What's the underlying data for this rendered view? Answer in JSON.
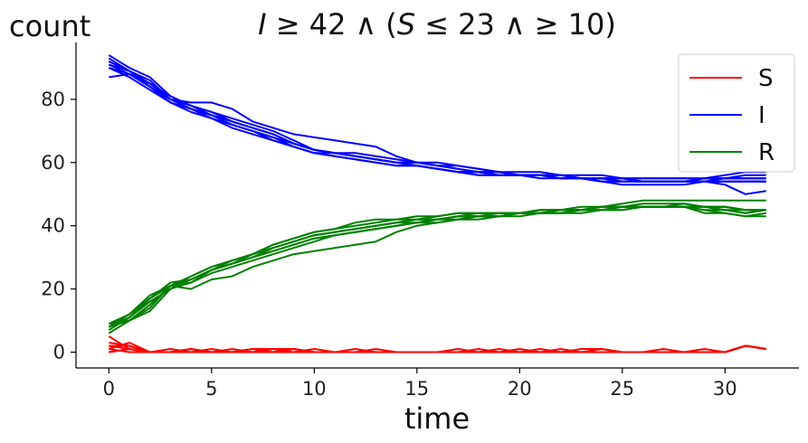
{
  "chart_data": {
    "type": "line",
    "title": "I ≥ 42 ∧ (S ≤ 23 ∧ ≥ 10)",
    "title_parts": {
      "lhs_var": "I",
      "op1": " ≥ 42 ∧ (",
      "mid_var": "S",
      "op2": " ≤ 23 ∧ ≥ 10)"
    },
    "xlabel": "time",
    "ylabel": "count",
    "xlim": [
      -1.6,
      33.6
    ],
    "ylim": [
      -5,
      98
    ],
    "xticks": [
      0,
      5,
      10,
      15,
      20,
      25,
      30
    ],
    "yticks": [
      0,
      20,
      40,
      60,
      80
    ],
    "grid": false,
    "legend_position": "top-right",
    "legend": [
      {
        "label": "S",
        "color": "#ff0000"
      },
      {
        "label": "I",
        "color": "#0000ff"
      },
      {
        "label": "R",
        "color": "#008000"
      }
    ],
    "x": [
      0,
      1,
      2,
      3,
      4,
      5,
      6,
      7,
      8,
      9,
      10,
      11,
      12,
      13,
      14,
      15,
      16,
      17,
      18,
      19,
      20,
      21,
      22,
      23,
      24,
      25,
      26,
      27,
      28,
      29,
      30,
      31,
      32
    ],
    "series": [
      {
        "group": "S",
        "color": "#ff0000",
        "values": [
          5,
          1,
          0,
          0,
          1,
          0,
          0,
          1,
          1,
          1,
          0,
          0,
          0,
          0,
          0,
          0,
          0,
          0,
          0,
          0,
          0,
          0,
          0,
          0,
          0,
          0,
          0,
          0,
          0,
          0,
          0,
          2,
          1
        ]
      },
      {
        "group": "S",
        "color": "#ff0000",
        "values": [
          3,
          2,
          0,
          0,
          0,
          0,
          0,
          0,
          1,
          1,
          0,
          0,
          0,
          0,
          0,
          0,
          0,
          0,
          0,
          0,
          1,
          0,
          0,
          0,
          0,
          0,
          0,
          0,
          0,
          0,
          0,
          2,
          1
        ]
      },
      {
        "group": "S",
        "color": "#ff0000",
        "values": [
          2,
          2,
          0,
          0,
          1,
          0,
          0,
          0,
          0,
          1,
          0,
          0,
          0,
          0,
          0,
          0,
          0,
          0,
          0,
          1,
          0,
          0,
          0,
          0,
          0,
          0,
          0,
          0,
          0,
          0,
          0,
          2,
          1
        ]
      },
      {
        "group": "S",
        "color": "#ff0000",
        "values": [
          1,
          3,
          0,
          0,
          0,
          0,
          0,
          0,
          0,
          0,
          0,
          0,
          0,
          0,
          0,
          0,
          0,
          0,
          0,
          0,
          0,
          0,
          0,
          1,
          1,
          0,
          0,
          0,
          0,
          0,
          0,
          2,
          1
        ]
      },
      {
        "group": "S",
        "color": "#ff0000",
        "values": [
          0,
          1,
          0,
          1,
          0,
          0,
          1,
          0,
          0,
          1,
          0,
          0,
          1,
          0,
          0,
          0,
          0,
          0,
          0,
          0,
          0,
          0,
          0,
          0,
          0,
          0,
          0,
          0,
          0,
          0,
          0,
          2,
          1
        ]
      },
      {
        "group": "S",
        "color": "#ff0000",
        "values": [
          1,
          0,
          0,
          0,
          1,
          0,
          0,
          1,
          0,
          0,
          1,
          0,
          0,
          0,
          0,
          0,
          0,
          1,
          0,
          0,
          0,
          1,
          0,
          0,
          0,
          0,
          0,
          1,
          0,
          0,
          0,
          2,
          1
        ]
      },
      {
        "group": "S",
        "color": "#ff0000",
        "values": [
          0,
          1,
          0,
          0,
          0,
          1,
          0,
          0,
          1,
          0,
          0,
          0,
          0,
          0,
          0,
          0,
          0,
          0,
          1,
          0,
          0,
          0,
          0,
          0,
          1,
          0,
          0,
          0,
          0,
          1,
          0,
          2,
          1
        ]
      },
      {
        "group": "S",
        "color": "#ff0000",
        "values": [
          2,
          1,
          0,
          0,
          0,
          0,
          0,
          0,
          0,
          1,
          0,
          0,
          0,
          1,
          0,
          0,
          0,
          0,
          0,
          0,
          0,
          0,
          1,
          0,
          0,
          0,
          0,
          0,
          0,
          0,
          0,
          2,
          1
        ]
      },
      {
        "group": "I",
        "color": "#0000ff",
        "values": [
          91,
          88,
          85,
          80,
          78,
          76,
          74,
          72,
          70,
          67,
          64,
          63,
          62,
          61,
          60,
          59,
          58,
          57,
          56,
          56,
          56,
          56,
          56,
          55,
          55,
          55,
          54,
          54,
          54,
          55,
          55,
          55,
          55
        ]
      },
      {
        "group": "I",
        "color": "#0000ff",
        "values": [
          93,
          89,
          84,
          80,
          77,
          74,
          72,
          70,
          68,
          66,
          64,
          63,
          62,
          61,
          60,
          59,
          58,
          57,
          57,
          56,
          56,
          56,
          56,
          55,
          55,
          54,
          54,
          54,
          54,
          54,
          54,
          54,
          54
        ]
      },
      {
        "group": "I",
        "color": "#0000ff",
        "values": [
          90,
          88,
          84,
          79,
          77,
          74,
          71,
          69,
          67,
          65,
          63,
          62,
          61,
          60,
          59,
          59,
          58,
          57,
          56,
          56,
          56,
          56,
          55,
          55,
          54,
          54,
          54,
          54,
          54,
          54,
          54,
          54,
          54
        ]
      },
      {
        "group": "I",
        "color": "#0000ff",
        "values": [
          92,
          89,
          85,
          81,
          78,
          76,
          73,
          71,
          69,
          66,
          64,
          63,
          62,
          61,
          60,
          60,
          59,
          58,
          57,
          57,
          56,
          56,
          56,
          55,
          55,
          55,
          55,
          55,
          55,
          55,
          55,
          56,
          56
        ]
      },
      {
        "group": "I",
        "color": "#0000ff",
        "values": [
          87,
          88,
          84,
          79,
          77,
          75,
          73,
          71,
          69,
          66,
          64,
          63,
          62,
          61,
          60,
          59,
          58,
          57,
          57,
          56,
          56,
          56,
          55,
          55,
          54,
          54,
          54,
          54,
          54,
          55,
          56,
          57,
          57
        ]
      },
      {
        "group": "I",
        "color": "#0000ff",
        "values": [
          91,
          89,
          86,
          80,
          79,
          79,
          77,
          73,
          71,
          69,
          68,
          67,
          66,
          65,
          62,
          60,
          59,
          59,
          58,
          57,
          56,
          56,
          55,
          55,
          54,
          53,
          53,
          53,
          53,
          54,
          53,
          50,
          51
        ]
      },
      {
        "group": "I",
        "color": "#0000ff",
        "values": [
          92,
          89,
          84,
          80,
          77,
          75,
          72,
          70,
          68,
          65,
          63,
          63,
          62,
          61,
          60,
          60,
          59,
          58,
          57,
          57,
          56,
          56,
          56,
          55,
          55,
          55,
          54,
          54,
          54,
          54,
          55,
          55,
          55
        ]
      },
      {
        "group": "I",
        "color": "#0000ff",
        "values": [
          90,
          87,
          83,
          79,
          76,
          74,
          72,
          70,
          67,
          65,
          63,
          62,
          61,
          60,
          59,
          59,
          58,
          57,
          57,
          56,
          56,
          55,
          55,
          55,
          55,
          54,
          54,
          54,
          54,
          54,
          54,
          54,
          54
        ]
      },
      {
        "group": "I",
        "color": "#0000ff",
        "values": [
          94,
          90,
          87,
          81,
          78,
          75,
          73,
          71,
          69,
          66,
          64,
          63,
          63,
          62,
          61,
          60,
          60,
          59,
          58,
          57,
          57,
          57,
          56,
          56,
          56,
          55,
          55,
          55,
          55,
          55,
          55,
          55,
          55
        ]
      },
      {
        "group": "R",
        "color": "#008000",
        "values": [
          8,
          11,
          17,
          21,
          24,
          27,
          29,
          31,
          33,
          35,
          37,
          38,
          39,
          40,
          41,
          41,
          42,
          43,
          43,
          43,
          44,
          44,
          44,
          45,
          45,
          46,
          46,
          46,
          46,
          44,
          44,
          43,
          44
        ]
      },
      {
        "group": "R",
        "color": "#008000",
        "values": [
          7,
          11,
          16,
          20,
          23,
          26,
          28,
          30,
          32,
          34,
          36,
          37,
          38,
          39,
          40,
          41,
          42,
          42,
          43,
          43,
          43,
          44,
          44,
          44,
          45,
          45,
          46,
          46,
          46,
          45,
          45,
          44,
          45
        ]
      },
      {
        "group": "R",
        "color": "#008000",
        "values": [
          9,
          12,
          18,
          21,
          23,
          26,
          28,
          30,
          33,
          35,
          37,
          38,
          39,
          40,
          41,
          42,
          42,
          43,
          44,
          44,
          44,
          44,
          45,
          45,
          46,
          46,
          46,
          46,
          47,
          46,
          46,
          45,
          45
        ]
      },
      {
        "group": "R",
        "color": "#008000",
        "values": [
          8,
          10,
          15,
          21,
          22,
          25,
          27,
          29,
          31,
          33,
          35,
          37,
          38,
          39,
          40,
          41,
          42,
          43,
          43,
          44,
          44,
          44,
          45,
          45,
          46,
          46,
          47,
          47,
          47,
          46,
          46,
          45,
          45
        ]
      },
      {
        "group": "R",
        "color": "#008000",
        "values": [
          8,
          11,
          17,
          22,
          23,
          26,
          29,
          31,
          33,
          35,
          37,
          38,
          39,
          40,
          41,
          42,
          42,
          43,
          43,
          44,
          44,
          44,
          44,
          45,
          45,
          46,
          46,
          46,
          46,
          46,
          45,
          44,
          45
        ]
      },
      {
        "group": "R",
        "color": "#008000",
        "values": [
          9,
          10,
          14,
          21,
          20,
          23,
          24,
          27,
          29,
          31,
          32,
          33,
          34,
          35,
          38,
          40,
          41,
          42,
          42,
          43,
          44,
          45,
          45,
          45,
          46,
          47,
          48,
          48,
          48,
          48,
          48,
          48,
          48
        ]
      },
      {
        "group": "R",
        "color": "#008000",
        "values": [
          8,
          11,
          16,
          20,
          22,
          26,
          28,
          30,
          32,
          34,
          36,
          37,
          38,
          39,
          40,
          41,
          41,
          42,
          43,
          43,
          44,
          44,
          44,
          45,
          45,
          45,
          46,
          46,
          46,
          45,
          44,
          43,
          43
        ]
      },
      {
        "group": "R",
        "color": "#008000",
        "values": [
          8,
          12,
          17,
          21,
          24,
          27,
          29,
          31,
          34,
          36,
          38,
          39,
          40,
          41,
          42,
          42,
          43,
          44,
          44,
          44,
          44,
          45,
          45,
          45,
          46,
          46,
          46,
          46,
          46,
          46,
          45,
          45,
          45
        ]
      },
      {
        "group": "R",
        "color": "#008000",
        "values": [
          6,
          10,
          13,
          20,
          23,
          26,
          28,
          31,
          34,
          36,
          38,
          39,
          41,
          42,
          42,
          43,
          43,
          44,
          44,
          44,
          44,
          45,
          45,
          46,
          46,
          46,
          46,
          46,
          46,
          46,
          46,
          45,
          45
        ]
      }
    ]
  }
}
